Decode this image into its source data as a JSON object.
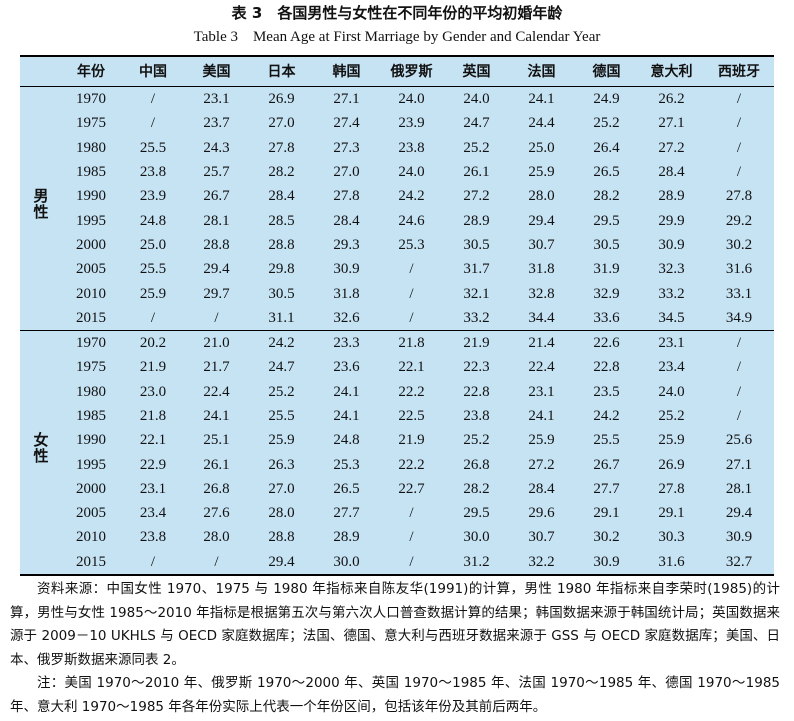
{
  "title_cn": "表 3　各国男性与女性在不同年份的平均初婚年龄",
  "title_en": "Table 3　Mean Age at First Marriage by Gender and Calendar Year",
  "columns": [
    "年份",
    "中国",
    "美国",
    "日本",
    "韩国",
    "俄罗斯",
    "英国",
    "法国",
    "德国",
    "意大利",
    "西班牙"
  ],
  "groups": [
    {
      "label": "男性",
      "rows": [
        [
          "1970",
          "/",
          "23.1",
          "26.9",
          "27.1",
          "24.0",
          "24.0",
          "24.1",
          "24.9",
          "26.2",
          "/"
        ],
        [
          "1975",
          "/",
          "23.7",
          "27.0",
          "27.4",
          "23.9",
          "24.7",
          "24.4",
          "25.2",
          "27.1",
          "/"
        ],
        [
          "1980",
          "25.5",
          "24.3",
          "27.8",
          "27.3",
          "23.8",
          "25.2",
          "25.0",
          "26.4",
          "27.2",
          "/"
        ],
        [
          "1985",
          "23.8",
          "25.7",
          "28.2",
          "27.0",
          "24.0",
          "26.1",
          "25.9",
          "26.5",
          "28.4",
          "/"
        ],
        [
          "1990",
          "23.9",
          "26.7",
          "28.4",
          "27.8",
          "24.2",
          "27.2",
          "28.0",
          "28.2",
          "28.9",
          "27.8"
        ],
        [
          "1995",
          "24.8",
          "28.1",
          "28.5",
          "28.4",
          "24.6",
          "28.9",
          "29.4",
          "29.5",
          "29.9",
          "29.2"
        ],
        [
          "2000",
          "25.0",
          "28.8",
          "28.8",
          "29.3",
          "25.3",
          "30.5",
          "30.7",
          "30.5",
          "30.9",
          "30.2"
        ],
        [
          "2005",
          "25.5",
          "29.4",
          "29.8",
          "30.9",
          "/",
          "31.7",
          "31.8",
          "31.9",
          "32.3",
          "31.6"
        ],
        [
          "2010",
          "25.9",
          "29.7",
          "30.5",
          "31.8",
          "/",
          "32.1",
          "32.8",
          "32.9",
          "33.2",
          "33.1"
        ],
        [
          "2015",
          "/",
          "/",
          "31.1",
          "32.6",
          "/",
          "33.2",
          "34.4",
          "33.6",
          "34.5",
          "34.9"
        ]
      ]
    },
    {
      "label": "女性",
      "rows": [
        [
          "1970",
          "20.2",
          "21.0",
          "24.2",
          "23.3",
          "21.8",
          "21.9",
          "21.4",
          "22.6",
          "23.1",
          "/"
        ],
        [
          "1975",
          "21.9",
          "21.7",
          "24.7",
          "23.6",
          "22.1",
          "22.3",
          "22.4",
          "22.8",
          "23.4",
          "/"
        ],
        [
          "1980",
          "23.0",
          "22.4",
          "25.2",
          "24.1",
          "22.2",
          "22.8",
          "23.1",
          "23.5",
          "24.0",
          "/"
        ],
        [
          "1985",
          "21.8",
          "24.1",
          "25.5",
          "24.1",
          "22.5",
          "23.8",
          "24.1",
          "24.2",
          "25.2",
          "/"
        ],
        [
          "1990",
          "22.1",
          "25.1",
          "25.9",
          "24.8",
          "21.9",
          "25.2",
          "25.9",
          "25.5",
          "25.9",
          "25.6"
        ],
        [
          "1995",
          "22.9",
          "26.1",
          "26.3",
          "25.3",
          "22.2",
          "26.8",
          "27.2",
          "26.7",
          "26.9",
          "27.1"
        ],
        [
          "2000",
          "23.1",
          "26.8",
          "27.0",
          "26.5",
          "22.7",
          "28.2",
          "28.4",
          "27.7",
          "27.8",
          "28.1"
        ],
        [
          "2005",
          "23.4",
          "27.6",
          "28.0",
          "27.7",
          "/",
          "29.5",
          "29.6",
          "29.1",
          "29.1",
          "29.4"
        ],
        [
          "2010",
          "23.8",
          "28.0",
          "28.8",
          "28.9",
          "/",
          "30.0",
          "30.7",
          "30.2",
          "30.3",
          "30.9"
        ],
        [
          "2015",
          "/",
          "/",
          "29.4",
          "30.0",
          "/",
          "31.2",
          "32.2",
          "30.9",
          "31.6",
          "32.7"
        ]
      ]
    }
  ],
  "notes": {
    "source": "资料来源：中国女性 1970、1975 与 1980 年指标来自陈友华(1991)的计算，男性 1980 年指标来自李荣时(1985)的计算，男性与女性 1985～2010 年指标是根据第五次与第六次人口普查数据计算的结果；韩国数据来源于韩国统计局；英国数据来源于 2009－10 UKHLS 与 OECD 家庭数据库；法国、德国、意大利与西班牙数据来源于 GSS 与 OECD 家庭数据库；美国、日本、俄罗斯数据来源同表 2。",
    "note": "注：美国 1970～2010 年、俄罗斯 1970～2000 年、英国 1970～1985 年、法国 1970～1985 年、德国 1970～1985 年、意大利 1970～1985 年各年份实际上代表一个年份区间，包括该年份及其前后两年。"
  }
}
